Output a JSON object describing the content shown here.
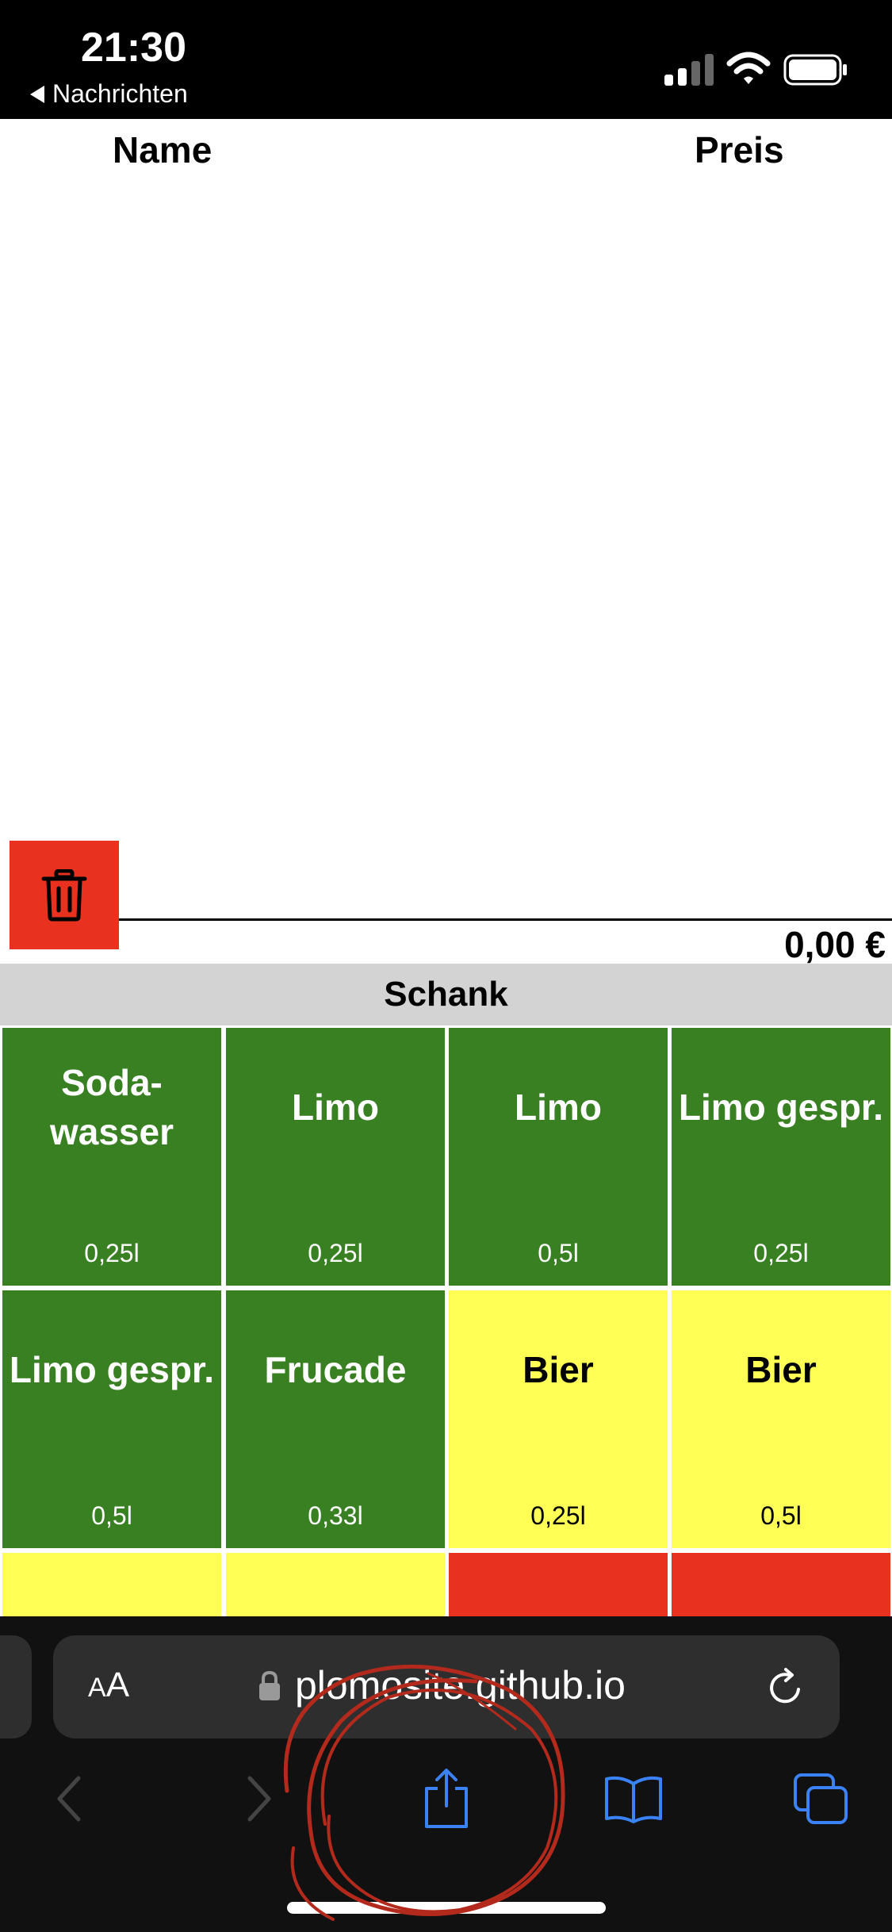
{
  "status_bar": {
    "time": "21:30",
    "back_app": "Nachrichten",
    "icons": [
      "cellular-signal-icon",
      "wifi-icon",
      "battery-icon"
    ]
  },
  "table_header": {
    "name": "Name",
    "price": "Preis"
  },
  "cart": {
    "items": [],
    "total": "0,00 €"
  },
  "category": "Schank",
  "products": [
    {
      "name": "Soda-\nwasser",
      "size": "0,25l",
      "color": "green"
    },
    {
      "name": "Limo",
      "size": "0,25l",
      "color": "green"
    },
    {
      "name": "Limo",
      "size": "0,5l",
      "color": "green"
    },
    {
      "name": "Limo gespr.",
      "size": "0,25l",
      "color": "green"
    },
    {
      "name": "Limo gespr.",
      "size": "0,5l",
      "color": "green"
    },
    {
      "name": "Frucade",
      "size": "0,33l",
      "color": "green"
    },
    {
      "name": "Bier",
      "size": "0,25l",
      "color": "yellow"
    },
    {
      "name": "Bier",
      "size": "0,5l",
      "color": "yellow"
    },
    {
      "name": "",
      "size": "",
      "color": "yellow"
    },
    {
      "name": "",
      "size": "",
      "color": "yellow"
    },
    {
      "name": "",
      "size": "",
      "color": "red"
    },
    {
      "name": "",
      "size": "",
      "color": "red"
    }
  ],
  "safari": {
    "aa_label_small": "A",
    "aa_label_large": "A",
    "url": "plomosite.github.io",
    "toolbar_icons": [
      "back-icon",
      "forward-icon",
      "share-icon",
      "bookmarks-icon",
      "tabs-icon"
    ]
  },
  "colors": {
    "green": "#388022",
    "yellow": "#ffff55",
    "red": "#e8321f",
    "category_bg": "#d3d3d3",
    "safari_blue": "#3b82f6",
    "scribble": "#b32a1c"
  }
}
